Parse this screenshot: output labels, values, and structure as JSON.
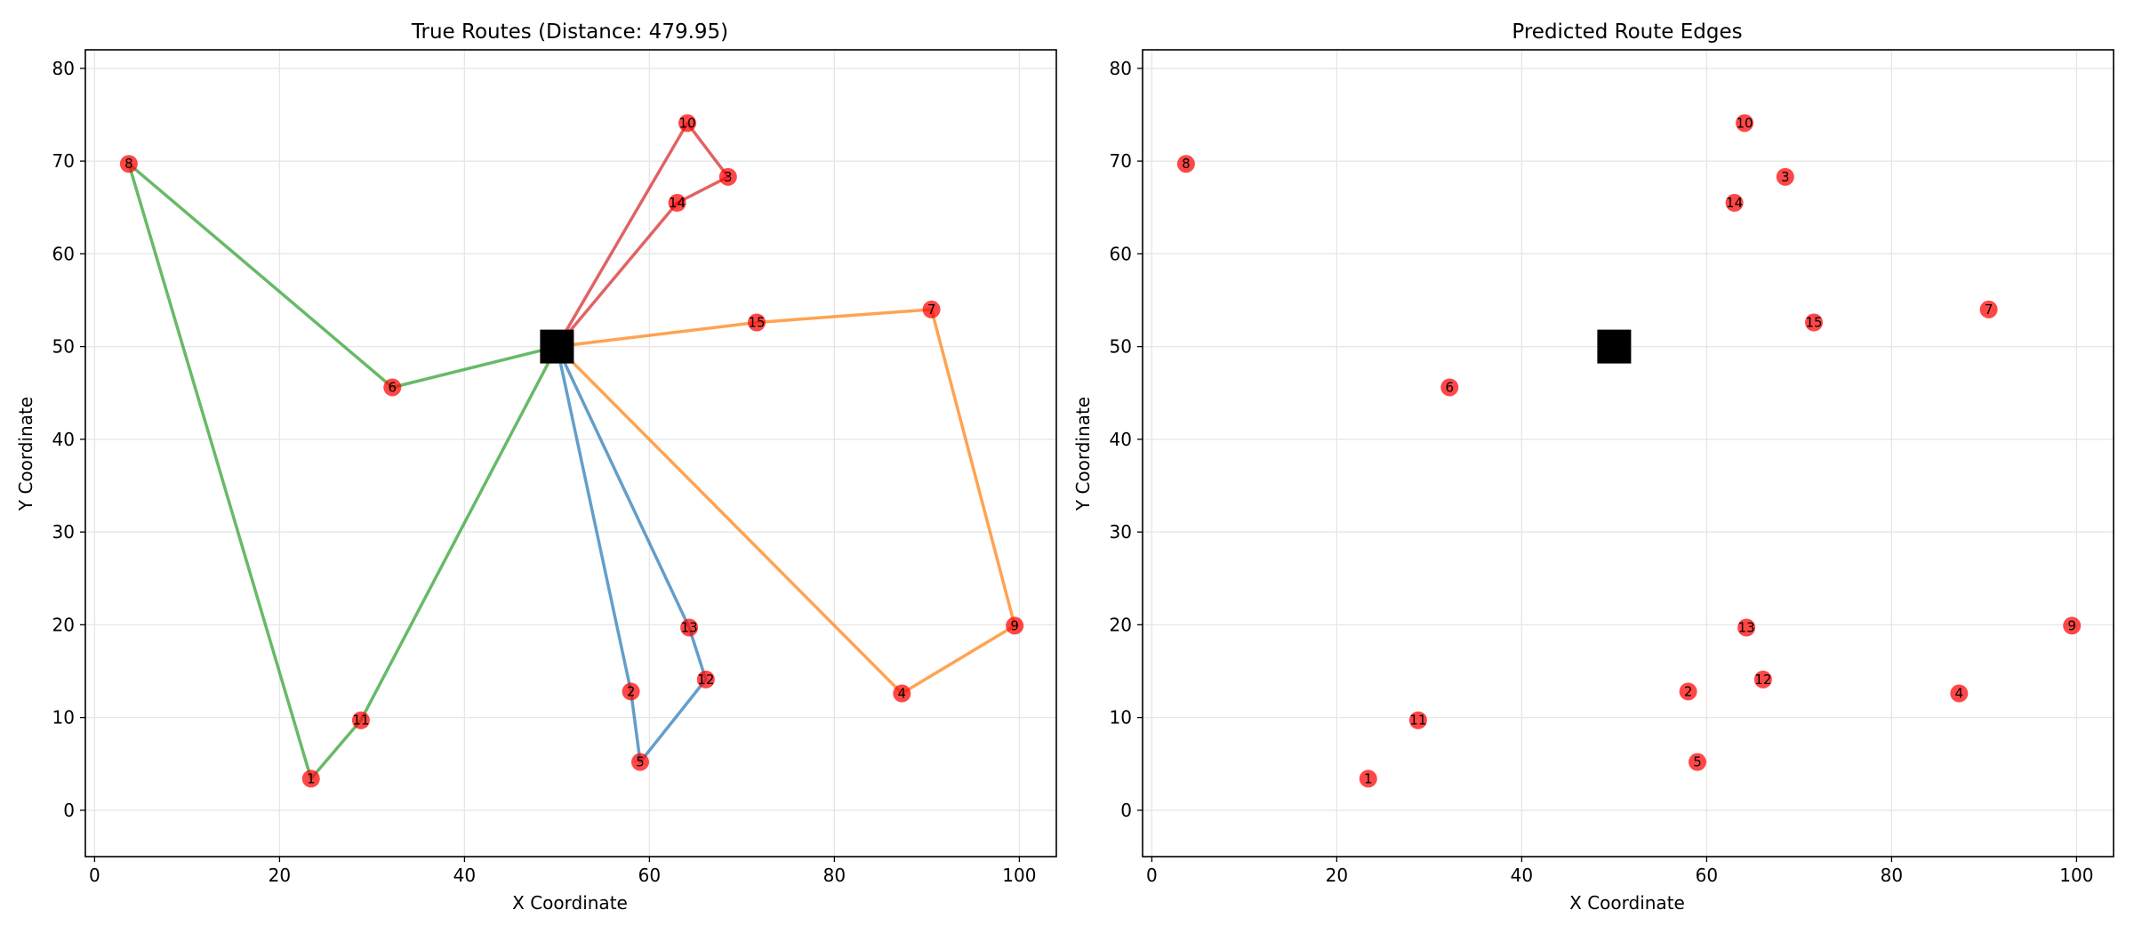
{
  "chart_data": [
    {
      "type": "scatter",
      "title": "True Routes (Distance: 479.95)",
      "xlabel": "X Coordinate",
      "ylabel": "Y Coordinate",
      "xlim": [
        -1,
        104
      ],
      "ylim": [
        -5,
        82
      ],
      "xticks": [
        0,
        20,
        40,
        60,
        80,
        100
      ],
      "yticks": [
        0,
        10,
        20,
        30,
        40,
        50,
        60,
        70,
        80
      ],
      "grid": true,
      "depot": {
        "x": 50,
        "y": 50,
        "color": "#000000"
      },
      "customer_color": "#ff0000",
      "customers": [
        {
          "id": "1",
          "x": 23.4,
          "y": 3.4
        },
        {
          "id": "2",
          "x": 58.0,
          "y": 12.8
        },
        {
          "id": "3",
          "x": 68.5,
          "y": 68.3
        },
        {
          "id": "4",
          "x": 87.3,
          "y": 12.6
        },
        {
          "id": "5",
          "x": 59.0,
          "y": 5.2
        },
        {
          "id": "6",
          "x": 32.2,
          "y": 45.6
        },
        {
          "id": "7",
          "x": 90.5,
          "y": 54.0
        },
        {
          "id": "8",
          "x": 3.7,
          "y": 69.7
        },
        {
          "id": "9",
          "x": 99.5,
          "y": 19.9
        },
        {
          "id": "10",
          "x": 64.1,
          "y": 74.1
        },
        {
          "id": "11",
          "x": 28.8,
          "y": 9.7
        },
        {
          "id": "12",
          "x": 66.1,
          "y": 14.1
        },
        {
          "id": "13",
          "x": 64.3,
          "y": 19.7
        },
        {
          "id": "14",
          "x": 63.0,
          "y": 65.5
        },
        {
          "id": "15",
          "x": 71.6,
          "y": 52.6
        }
      ],
      "routes": [
        {
          "color": "#2878b5",
          "path": [
            "0",
            "2",
            "5",
            "12",
            "13",
            "0"
          ]
        },
        {
          "color": "#2ca02c",
          "path": [
            "0",
            "6",
            "8",
            "1",
            "11",
            "0"
          ]
        },
        {
          "color": "#d62728",
          "path": [
            "0",
            "14",
            "3",
            "10",
            "0"
          ]
        },
        {
          "color": "#ff7f0e",
          "path": [
            "0",
            "15",
            "7",
            "9",
            "4",
            "0"
          ]
        }
      ]
    },
    {
      "type": "scatter",
      "title": "Predicted Route Edges",
      "xlabel": "X Coordinate",
      "ylabel": "Y Coordinate",
      "xlim": [
        -1,
        104
      ],
      "ylim": [
        -5,
        82
      ],
      "xticks": [
        0,
        20,
        40,
        60,
        80,
        100
      ],
      "yticks": [
        0,
        10,
        20,
        30,
        40,
        50,
        60,
        70,
        80
      ],
      "grid": true,
      "depot": {
        "x": 50,
        "y": 50,
        "color": "#000000"
      },
      "customer_color": "#ff0000",
      "customers": [
        {
          "id": "1",
          "x": 23.4,
          "y": 3.4
        },
        {
          "id": "2",
          "x": 58.0,
          "y": 12.8
        },
        {
          "id": "3",
          "x": 68.5,
          "y": 68.3
        },
        {
          "id": "4",
          "x": 87.3,
          "y": 12.6
        },
        {
          "id": "5",
          "x": 59.0,
          "y": 5.2
        },
        {
          "id": "6",
          "x": 32.2,
          "y": 45.6
        },
        {
          "id": "7",
          "x": 90.5,
          "y": 54.0
        },
        {
          "id": "8",
          "x": 3.7,
          "y": 69.7
        },
        {
          "id": "9",
          "x": 99.5,
          "y": 19.9
        },
        {
          "id": "10",
          "x": 64.1,
          "y": 74.1
        },
        {
          "id": "11",
          "x": 28.8,
          "y": 9.7
        },
        {
          "id": "12",
          "x": 66.1,
          "y": 14.1
        },
        {
          "id": "13",
          "x": 64.3,
          "y": 19.7
        },
        {
          "id": "14",
          "x": 63.0,
          "y": 65.5
        },
        {
          "id": "15",
          "x": 71.6,
          "y": 52.6
        }
      ],
      "routes": []
    }
  ]
}
